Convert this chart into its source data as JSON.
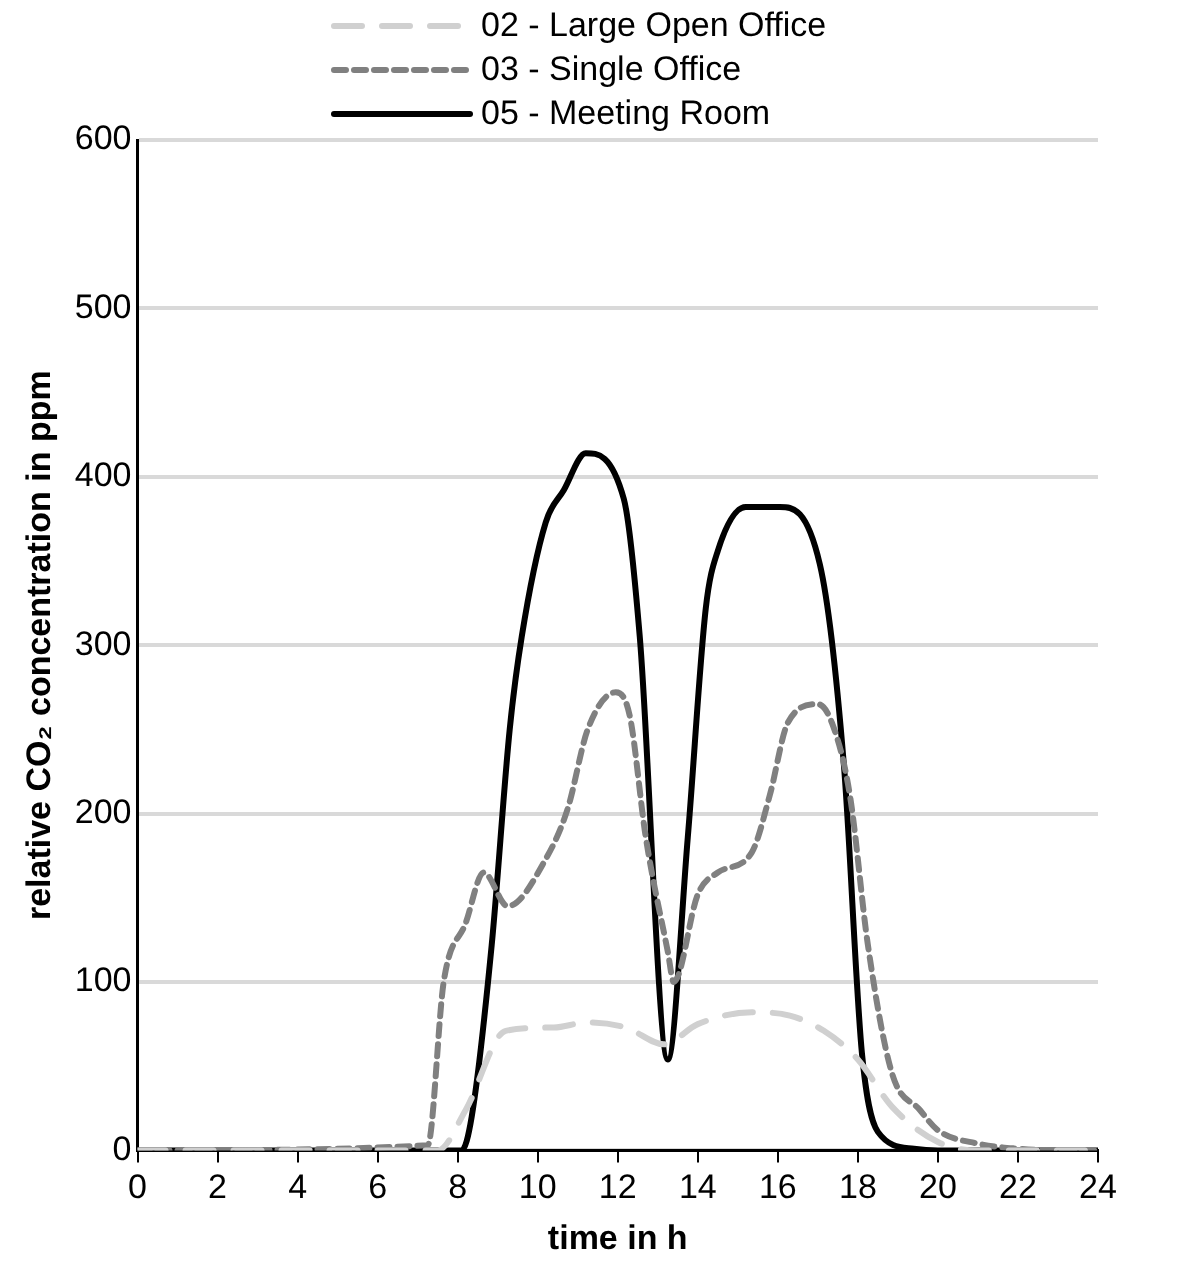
{
  "chart_data": {
    "type": "line",
    "xlabel": "time in h",
    "ylabel": "relative CO₂ concentration in ppm",
    "xlim": [
      0,
      24
    ],
    "xticks": [
      0,
      2,
      4,
      6,
      8,
      10,
      12,
      14,
      16,
      18,
      20,
      22,
      24
    ],
    "ylim": [
      0,
      600
    ],
    "yticks": [
      0,
      100,
      200,
      300,
      400,
      500,
      600
    ],
    "grid": "y",
    "legend": "top",
    "marker": "none",
    "series": [
      {
        "name": "02 - Large Open Office",
        "color": "#d0d0d0",
        "line_style": "dashed",
        "x": [
          0,
          7.5,
          8.2,
          9.2,
          10.4,
          11.25,
          12.2,
          13.15,
          14.0,
          15.35,
          16.3,
          17.15,
          18.0,
          18.85,
          20,
          21,
          24
        ],
        "values": [
          0,
          0,
          24,
          71,
          73,
          76,
          73,
          63,
          75,
          82,
          80,
          71,
          54,
          26,
          5,
          0,
          0
        ]
      },
      {
        "name": "03 - Single Office",
        "color": "#808080",
        "line_style": "dotted",
        "x": [
          0,
          7.25,
          7.65,
          8.2,
          8.65,
          9.25,
          10.2,
          10.75,
          11.25,
          11.95,
          12.3,
          12.7,
          13.25,
          13.4,
          14.0,
          14.5,
          15.35,
          15.8,
          16.25,
          17.0,
          17.35,
          17.8,
          18.25,
          18.85,
          19.55,
          20,
          21,
          22,
          23,
          24
        ],
        "values": [
          0,
          3,
          100,
          135,
          165,
          145,
          173,
          203,
          250,
          272,
          258,
          186,
          118,
          100,
          152,
          165,
          177,
          211,
          254,
          265,
          254,
          211,
          122,
          46,
          24,
          12,
          4,
          1,
          0,
          0
        ]
      },
      {
        "name": "05 - Meeting Room",
        "color": "#000000",
        "line_style": "solid",
        "x": [
          0,
          8.1,
          8.35,
          8.85,
          9.3,
          9.6,
          10.2,
          10.65,
          11.2,
          12.15,
          12.55,
          13.25,
          13.75,
          14.2,
          14.5,
          15.2,
          16.05,
          17.05,
          17.65,
          18.1,
          18.5,
          19.4,
          20,
          24
        ],
        "values": [
          0,
          0,
          20,
          122,
          250,
          305,
          373,
          392,
          414,
          387,
          305,
          54,
          186,
          322,
          356,
          382,
          382,
          348,
          229,
          58,
          11,
          1,
          0,
          0
        ]
      }
    ]
  }
}
